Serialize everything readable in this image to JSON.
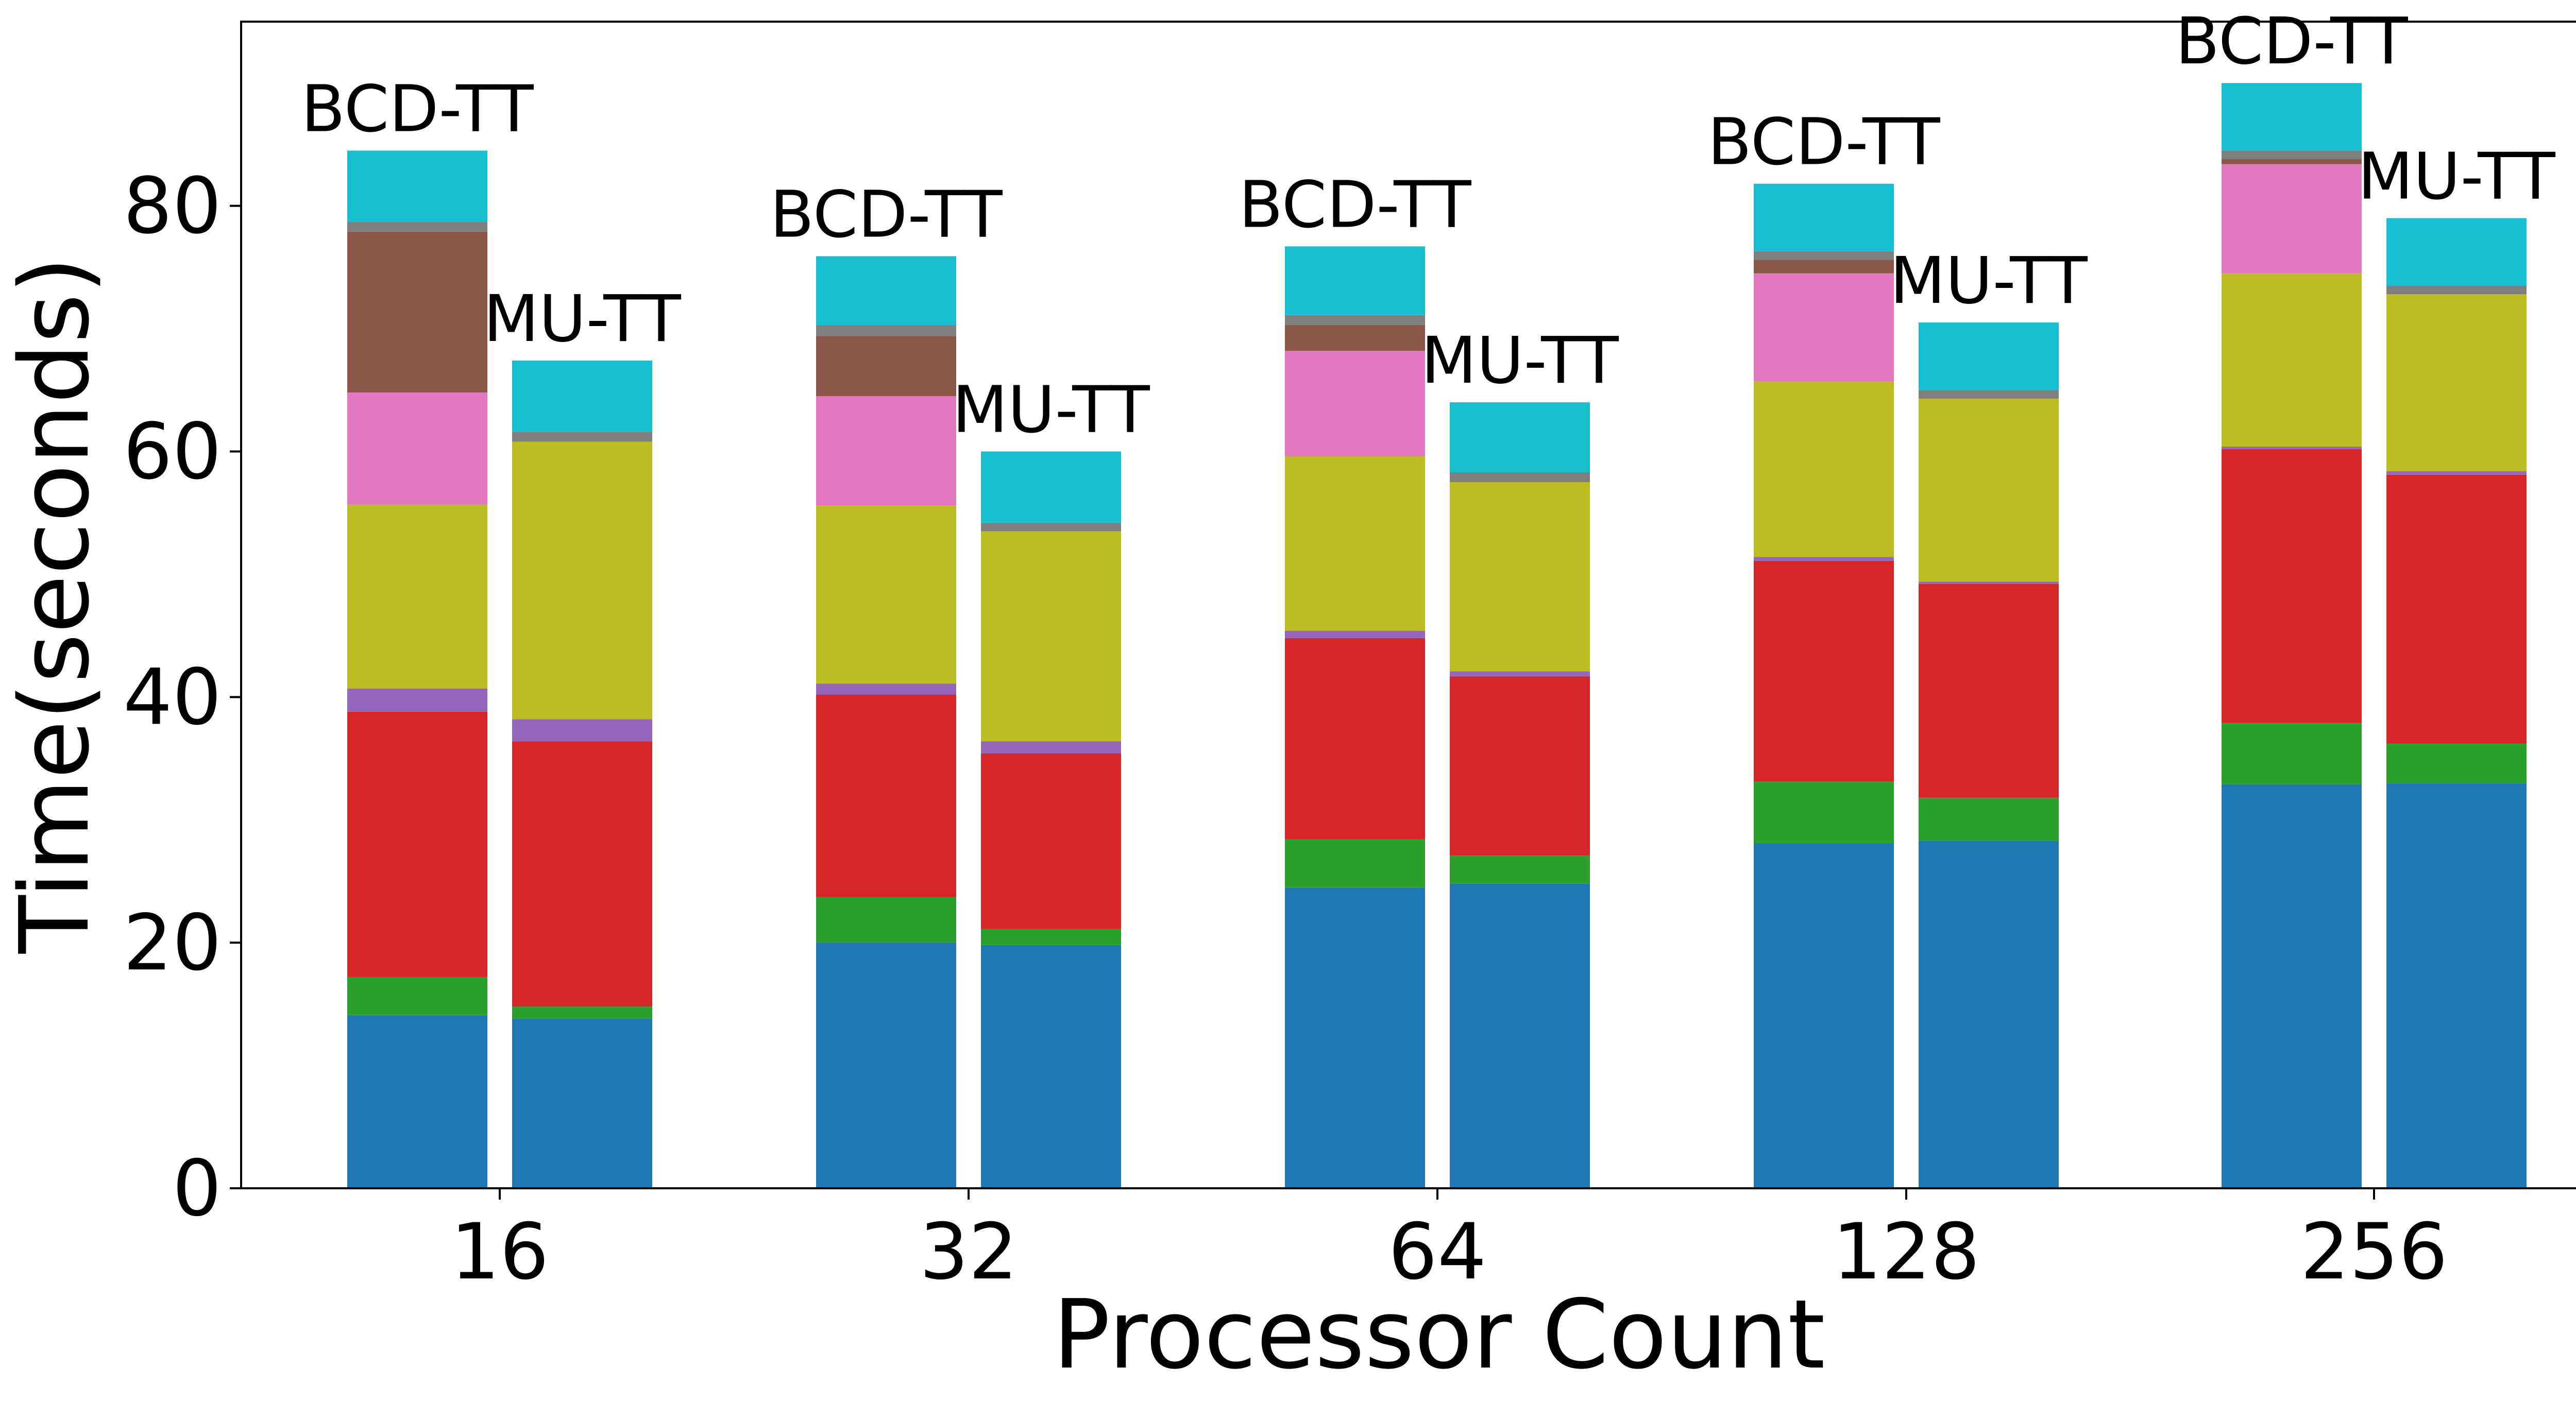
{
  "chart_data": {
    "type": "bar",
    "stacked": true,
    "grouped": true,
    "title": "",
    "xlabel": "Processor Count",
    "ylabel": "Time(seconds)",
    "ylim": [
      0,
      95
    ],
    "yticks": [
      "0",
      "20",
      "40",
      "60",
      "80"
    ],
    "ytick_values": [
      0,
      20,
      40,
      60,
      80
    ],
    "grid": false,
    "legend": "none",
    "categories": [
      "16",
      "32",
      "64",
      "128",
      "256"
    ],
    "groups": [
      "BCD-TT",
      "MU-TT"
    ],
    "segment_colors": [
      "#1f77b4",
      "#2ca02c",
      "#d62728",
      "#9467bd",
      "#bcbd22",
      "#e377c2",
      "#8c564b",
      "#7f7f7f",
      "#17becf"
    ],
    "bars": [
      {
        "category": "16",
        "label": "BCD-TT",
        "segments": [
          14.1,
          3.1,
          21.6,
          1.9,
          15.0,
          9.1,
          13.1,
          0.8,
          5.8
        ]
      },
      {
        "category": "16",
        "label": "MU-TT",
        "segments": [
          13.8,
          1.0,
          21.6,
          1.8,
          22.6,
          0.0,
          0.0,
          0.8,
          5.8
        ]
      },
      {
        "category": "32",
        "label": "BCD-TT",
        "segments": [
          20.0,
          3.7,
          16.5,
          0.9,
          14.5,
          8.9,
          4.9,
          0.9,
          5.6
        ]
      },
      {
        "category": "32",
        "label": "MU-TT",
        "segments": [
          19.8,
          1.3,
          14.3,
          1.0,
          17.1,
          0.0,
          0.0,
          0.7,
          5.8
        ]
      },
      {
        "category": "64",
        "label": "BCD-TT",
        "segments": [
          24.5,
          3.9,
          16.4,
          0.6,
          14.2,
          8.6,
          2.1,
          0.8,
          5.6
        ]
      },
      {
        "category": "64",
        "label": "MU-TT",
        "segments": [
          24.8,
          2.3,
          14.6,
          0.4,
          15.4,
          0.0,
          0.0,
          0.8,
          5.7
        ]
      },
      {
        "category": "128",
        "label": "BCD-TT",
        "segments": [
          28.1,
          5.0,
          18.0,
          0.3,
          14.3,
          8.8,
          1.1,
          0.7,
          5.5
        ]
      },
      {
        "category": "128",
        "label": "MU-TT",
        "segments": [
          28.3,
          3.5,
          17.4,
          0.2,
          14.9,
          0.0,
          0.0,
          0.7,
          5.5
        ]
      },
      {
        "category": "256",
        "label": "BCD-TT",
        "segments": [
          32.9,
          5.0,
          22.3,
          0.2,
          14.1,
          8.9,
          0.4,
          0.7,
          5.5
        ]
      },
      {
        "category": "256",
        "label": "MU-TT",
        "segments": [
          33.0,
          3.2,
          21.9,
          0.3,
          14.4,
          0.0,
          0.0,
          0.7,
          5.5
        ]
      }
    ]
  }
}
